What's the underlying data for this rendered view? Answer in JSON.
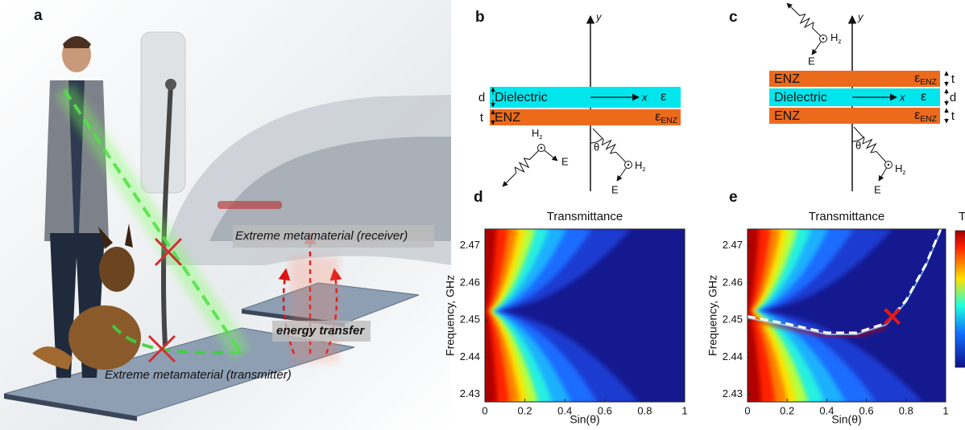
{
  "panel_labels": [
    "a",
    "b",
    "c",
    "d",
    "e"
  ],
  "illustration": {
    "receiver": "Extreme metamaterial (receiver)",
    "transfer": "energy transfer",
    "transmitter": "Extreme metamaterial (transmitter)"
  },
  "diagram_b": {
    "y_axis": "y",
    "x_axis": "x",
    "angle": "θ",
    "layers": [
      {
        "name": "Dielectric",
        "thickness": "d",
        "permittivity": {
          "base": "ε",
          "sub": ""
        }
      },
      {
        "name": "ENZ",
        "thickness": "t",
        "permittivity": {
          "base": "ε",
          "sub": "ENZ"
        }
      }
    ],
    "waves": [
      {
        "field": {
          "base": "H",
          "sub": "z"
        },
        "e": "E"
      },
      {
        "field": {
          "base": "H",
          "sub": "z"
        },
        "e": "E"
      }
    ]
  },
  "diagram_c": {
    "y_axis": "y",
    "x_axis": "x",
    "angle": "θ",
    "layers": [
      {
        "name": "ENZ",
        "thickness": "t",
        "permittivity": {
          "base": "ε",
          "sub": "ENZ"
        }
      },
      {
        "name": "Dielectric",
        "thickness": "d",
        "permittivity": {
          "base": "ε",
          "sub": ""
        }
      },
      {
        "name": "ENZ",
        "thickness": "t",
        "permittivity": {
          "base": "ε",
          "sub": "ENZ"
        }
      }
    ],
    "waves": [
      {
        "field": {
          "base": "H",
          "sub": "z"
        },
        "e": "E"
      },
      {
        "field": {
          "base": "H",
          "sub": "z"
        },
        "e": "E"
      }
    ]
  },
  "chart_data": [
    {
      "type": "heatmap",
      "title": "Transmittance",
      "xlabel": "Sin(θ)",
      "ylabel": "Frequency, GHz",
      "xlim": [
        0,
        1
      ],
      "ylim": [
        2.428,
        2.4745
      ],
      "xticks": [
        0,
        0.2,
        0.4,
        0.6,
        0.8,
        1
      ],
      "yticks": [
        2.43,
        2.44,
        2.45,
        2.46,
        2.47
      ]
    },
    {
      "type": "heatmap",
      "title": "Transmittance",
      "xlabel": "Sin(θ)",
      "ylabel": "Frequency, GHz",
      "xlim": [
        0,
        1
      ],
      "ylim": [
        2.428,
        2.4745
      ],
      "xticks": [
        0,
        0.2,
        0.4,
        0.6,
        0.8,
        1
      ],
      "yticks": [
        2.43,
        2.44,
        2.45,
        2.46,
        2.47
      ]
    }
  ],
  "colorbar_label": "T"
}
